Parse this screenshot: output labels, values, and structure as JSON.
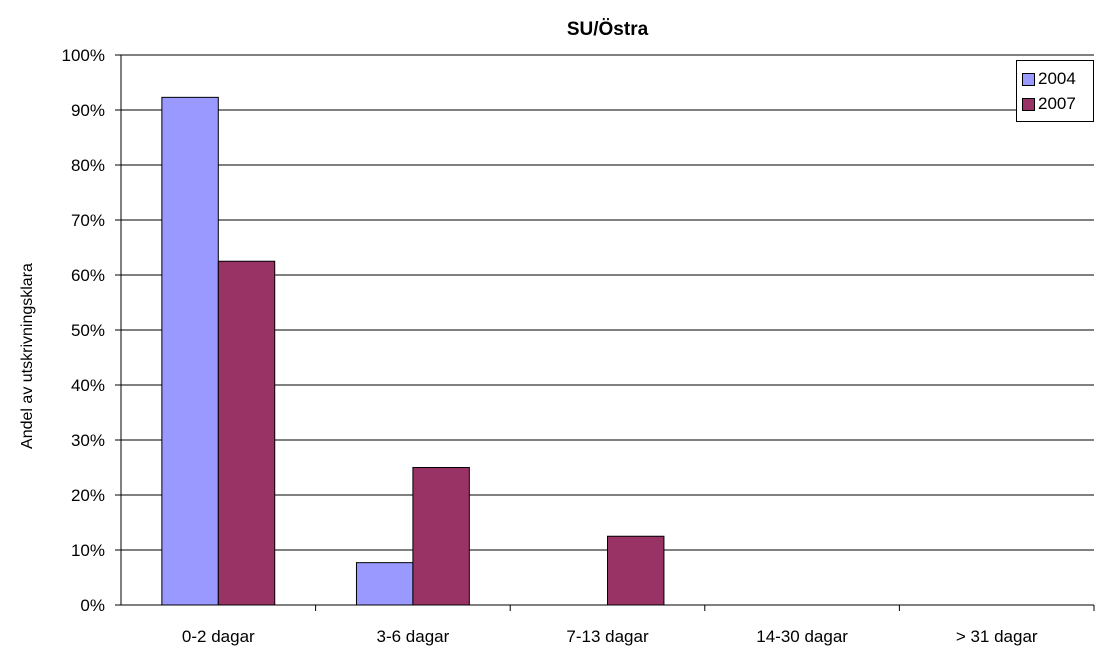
{
  "chart_data": {
    "type": "bar",
    "title": "SU/Östra",
    "xlabel": "",
    "ylabel": "Andel av utskrivningsklara",
    "categories": [
      "0-2 dagar",
      "3-6 dagar",
      "7-13 dagar",
      "14-30 dagar",
      "> 31 dagar"
    ],
    "series": [
      {
        "name": "2004",
        "color": "#9999ff",
        "values": [
          92.3,
          7.7,
          0,
          0,
          0
        ]
      },
      {
        "name": "2007",
        "color": "#993366",
        "values": [
          62.5,
          25,
          12.5,
          0,
          0
        ]
      }
    ],
    "ylim": [
      0,
      100
    ],
    "yticks": [
      "0%",
      "10%",
      "20%",
      "30%",
      "40%",
      "50%",
      "60%",
      "70%",
      "80%",
      "90%",
      "100%"
    ],
    "grid": true,
    "legend_position": "top-right"
  }
}
